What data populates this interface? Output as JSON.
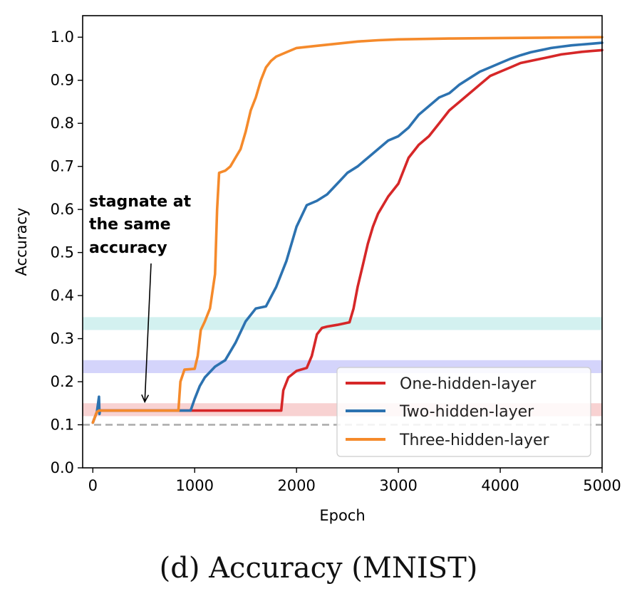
{
  "caption": "(d) Accuracy (MNIST)",
  "chart_data": {
    "type": "line",
    "xlabel": "Epoch",
    "ylabel": "Accuracy",
    "xlim": [
      -100,
      5000
    ],
    "ylim": [
      0.0,
      1.05
    ],
    "xticks": [
      "0",
      "1000",
      "2000",
      "3000",
      "4000",
      "5000"
    ],
    "yticks": [
      "0.0",
      "0.1",
      "0.2",
      "0.3",
      "0.4",
      "0.5",
      "0.6",
      "0.7",
      "0.8",
      "0.9",
      "1.0"
    ],
    "grid": false,
    "legend_position": "lower right",
    "annotation": {
      "lines": [
        "stagnate at",
        "the same",
        "accuracy"
      ],
      "arrow_to": {
        "x": 510,
        "y": 0.15
      }
    },
    "reference_line": {
      "y": 0.1,
      "style": "dashed",
      "color": "#aaaaaa"
    },
    "bands": [
      {
        "y0": 0.12,
        "y1": 0.15,
        "color": "#f4b4b4"
      },
      {
        "y0": 0.22,
        "y1": 0.25,
        "color": "#b8b8f8"
      },
      {
        "y0": 0.32,
        "y1": 0.35,
        "color": "#b6e8e6"
      }
    ],
    "series": [
      {
        "name": "One-hidden-layer",
        "color": "#d62728",
        "x": [
          0,
          40,
          60,
          100,
          1850,
          1870,
          1920,
          2000,
          2100,
          2150,
          2200,
          2250,
          2300,
          2400,
          2520,
          2560,
          2600,
          2650,
          2700,
          2750,
          2800,
          2900,
          3000,
          3100,
          3200,
          3300,
          3400,
          3500,
          3600,
          3700,
          3800,
          3900,
          4000,
          4100,
          4200,
          4300,
          4400,
          4500,
          4600,
          4700,
          4800,
          4900,
          5000
        ],
        "y": [
          0.105,
          0.13,
          0.133,
          0.133,
          0.133,
          0.18,
          0.21,
          0.225,
          0.232,
          0.26,
          0.31,
          0.325,
          0.328,
          0.332,
          0.338,
          0.37,
          0.42,
          0.47,
          0.52,
          0.56,
          0.59,
          0.63,
          0.66,
          0.72,
          0.75,
          0.77,
          0.8,
          0.83,
          0.85,
          0.87,
          0.89,
          0.91,
          0.92,
          0.93,
          0.94,
          0.945,
          0.95,
          0.955,
          0.96,
          0.963,
          0.966,
          0.968,
          0.97
        ]
      },
      {
        "name": "Two-hidden-layer",
        "color": "#2c72b0",
        "x": [
          0,
          40,
          60,
          65,
          70,
          100,
          960,
          1000,
          1050,
          1100,
          1200,
          1300,
          1400,
          1500,
          1600,
          1700,
          1800,
          1900,
          2000,
          2100,
          2200,
          2300,
          2400,
          2500,
          2600,
          2700,
          2800,
          2900,
          3000,
          3100,
          3200,
          3300,
          3400,
          3500,
          3600,
          3700,
          3800,
          3900,
          4000,
          4100,
          4200,
          4300,
          4400,
          4500,
          4600,
          4700,
          4800,
          4900,
          5000
        ],
        "y": [
          0.105,
          0.13,
          0.165,
          0.125,
          0.133,
          0.133,
          0.133,
          0.16,
          0.19,
          0.21,
          0.235,
          0.25,
          0.29,
          0.34,
          0.37,
          0.375,
          0.42,
          0.48,
          0.56,
          0.61,
          0.62,
          0.635,
          0.66,
          0.685,
          0.7,
          0.72,
          0.74,
          0.76,
          0.77,
          0.79,
          0.82,
          0.84,
          0.86,
          0.87,
          0.89,
          0.905,
          0.92,
          0.93,
          0.94,
          0.95,
          0.958,
          0.965,
          0.97,
          0.975,
          0.978,
          0.981,
          0.983,
          0.985,
          0.987
        ]
      },
      {
        "name": "Three-hidden-layer",
        "color": "#f58a2b",
        "x": [
          0,
          40,
          60,
          100,
          840,
          860,
          900,
          1000,
          1030,
          1060,
          1100,
          1150,
          1200,
          1220,
          1240,
          1300,
          1350,
          1400,
          1450,
          1500,
          1550,
          1600,
          1650,
          1700,
          1750,
          1800,
          1900,
          2000,
          2200,
          2400,
          2600,
          2800,
          3000,
          3500,
          4000,
          4500,
          5000
        ],
        "y": [
          0.105,
          0.13,
          0.133,
          0.133,
          0.133,
          0.2,
          0.228,
          0.23,
          0.26,
          0.32,
          0.34,
          0.37,
          0.45,
          0.6,
          0.685,
          0.69,
          0.7,
          0.72,
          0.74,
          0.78,
          0.83,
          0.86,
          0.9,
          0.93,
          0.945,
          0.955,
          0.965,
          0.975,
          0.98,
          0.985,
          0.99,
          0.993,
          0.995,
          0.997,
          0.998,
          0.999,
          1.0
        ]
      }
    ]
  }
}
